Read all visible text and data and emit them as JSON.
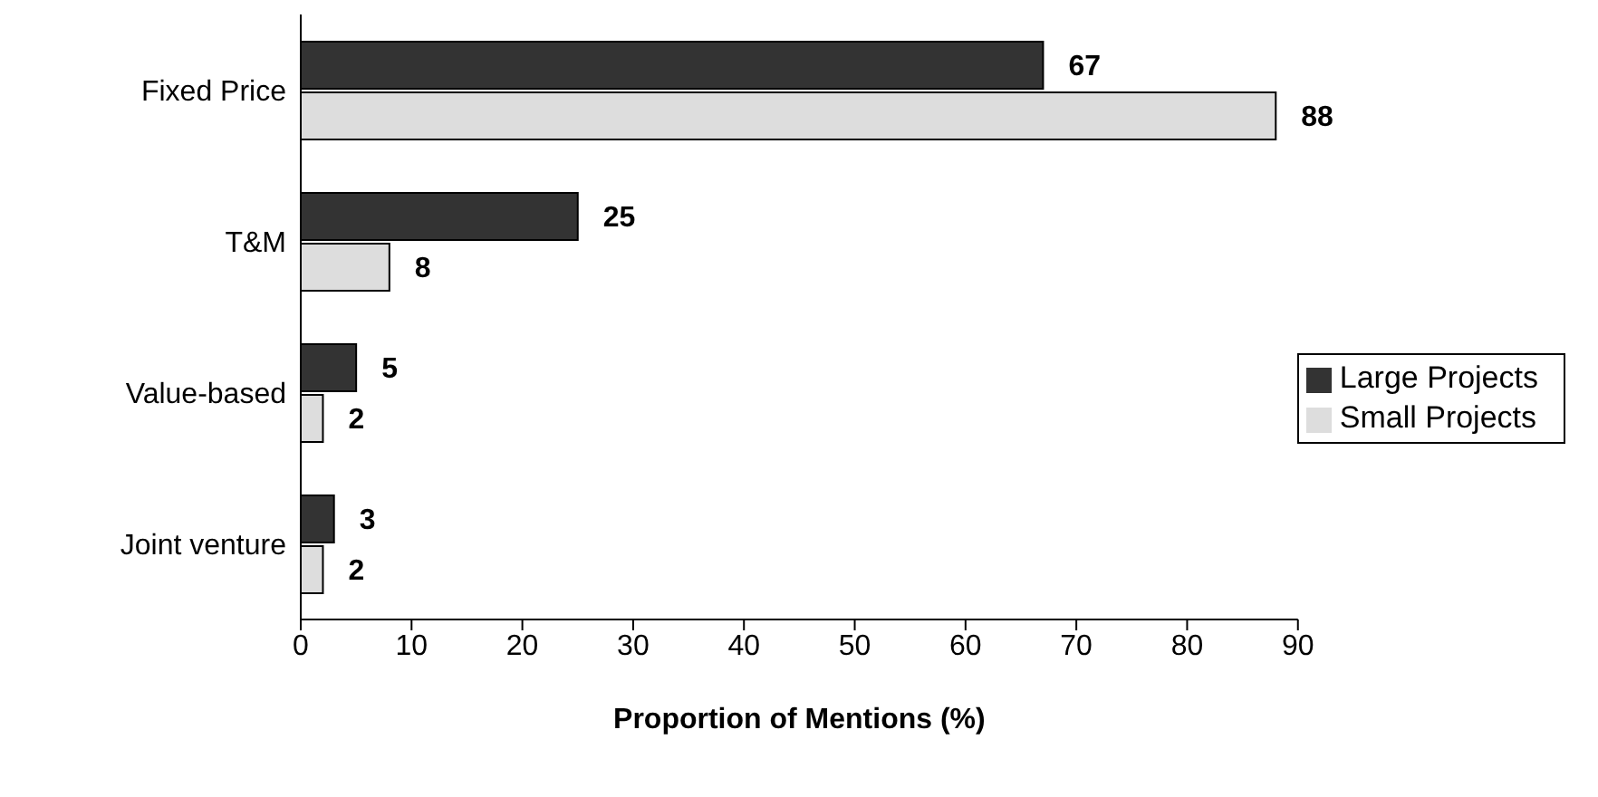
{
  "chart_data": {
    "type": "bar",
    "orientation": "horizontal",
    "xlabel": "Proportion of Mentions (%)",
    "categories": [
      "Fixed Price",
      "T&M",
      "Value-based",
      "Joint venture"
    ],
    "series": [
      {
        "name": "Large Projects",
        "color": "#333333",
        "values": [
          67,
          25,
          5,
          3
        ]
      },
      {
        "name": "Small Projects",
        "color": "#dddddd",
        "values": [
          88,
          8,
          2,
          2
        ]
      }
    ],
    "xlim": [
      0,
      90
    ],
    "xticks": [
      0,
      10,
      20,
      30,
      40,
      50,
      60,
      70,
      80,
      90
    ],
    "data_labels": true,
    "legend": "right",
    "grid": false
  }
}
